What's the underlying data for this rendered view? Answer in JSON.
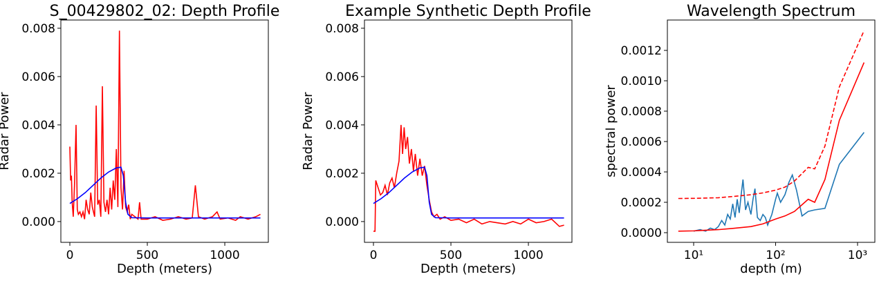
{
  "chart_data": [
    {
      "type": "line",
      "title": "S_00429802_02: Depth Profile",
      "xlabel": "Depth (meters)",
      "ylabel": "Radar Power",
      "xlim": [
        -58,
        1281
      ],
      "ylim": [
        -0.00086,
        0.00834
      ],
      "xticks": [
        0,
        500,
        1000
      ],
      "yticks": [
        {
          "value": 0,
          "label": "0.000"
        },
        {
          "value": 0.002,
          "label": "0.002"
        },
        {
          "value": 0.004,
          "label": "0.004"
        },
        {
          "value": 0.006,
          "label": "0.006"
        },
        {
          "value": 0.008,
          "label": "0.008"
        }
      ],
      "series": [
        {
          "color": "#ff0000",
          "x": [
            0,
            5,
            10,
            15,
            22,
            30,
            40,
            48,
            55,
            65,
            75,
            85,
            95,
            105,
            115,
            125,
            135,
            145,
            160,
            170,
            180,
            190,
            200,
            210,
            220,
            230,
            240,
            250,
            260,
            270,
            280,
            290,
            300,
            310,
            320,
            330,
            340,
            350,
            360,
            370,
            380,
            390,
            400,
            420,
            440,
            450,
            460,
            500,
            550,
            600,
            650,
            700,
            750,
            790,
            810,
            830,
            870,
            920,
            950,
            970,
            1020,
            1070,
            1100,
            1150,
            1200,
            1230
          ],
          "values": [
            0.0031,
            0.0017,
            0.0019,
            0.0008,
            0.0002,
            0.0015,
            0.004,
            0.0005,
            0.0003,
            0.0004,
            0.0002,
            0.0004,
            0.0001,
            0.0009,
            0.0005,
            0.0003,
            0.0012,
            0.0006,
            0.0002,
            0.0048,
            0.0007,
            0.0009,
            0.0002,
            0.0056,
            0.0008,
            0.0004,
            0.0009,
            0.0003,
            0.0014,
            0.0005,
            0.0017,
            0.0009,
            0.003,
            0.0006,
            0.0079,
            0.0014,
            0.0005,
            0.0021,
            0.0006,
            0.0004,
            0.0007,
            0.0001,
            0.0003,
            0.0002,
            0.0001,
            0.0008,
            0.0001,
            0.0001,
            0.0002,
            5e-05,
            0.0001,
            0.0002,
            0.0001,
            0.00015,
            0.0015,
            0.0002,
            0.0001,
            0.0002,
            0.0004,
            0.0001,
            0.00015,
            5e-05,
            0.0002,
            0.0001,
            0.0002,
            0.0003
          ]
        },
        {
          "color": "#0000ff",
          "x": [
            0,
            50,
            100,
            150,
            200,
            250,
            300,
            330,
            345,
            360,
            375,
            400,
            500,
            1230
          ],
          "values": [
            0.00075,
            0.00095,
            0.0012,
            0.0015,
            0.0018,
            0.00205,
            0.00222,
            0.00225,
            0.0019,
            0.0008,
            0.0003,
            0.00016,
            0.00015,
            0.00015
          ]
        }
      ]
    },
    {
      "type": "line",
      "title": "Example Synthetic Depth Profile",
      "xlabel": "Depth (meters)",
      "ylabel": "Radar Power",
      "xlim": [
        -58,
        1281
      ],
      "ylim": [
        -0.00086,
        0.00834
      ],
      "xticks": [
        0,
        500,
        1000
      ],
      "yticks": [
        {
          "value": 0,
          "label": "0.000"
        },
        {
          "value": 0.002,
          "label": "0.002"
        },
        {
          "value": 0.004,
          "label": "0.004"
        },
        {
          "value": 0.006,
          "label": "0.006"
        },
        {
          "value": 0.008,
          "label": "0.008"
        }
      ],
      "series": [
        {
          "color": "#ff0000",
          "x": [
            0,
            10,
            15,
            30,
            45,
            60,
            75,
            90,
            105,
            120,
            135,
            150,
            165,
            178,
            188,
            198,
            208,
            220,
            232,
            245,
            258,
            270,
            285,
            300,
            315,
            330,
            345,
            360,
            375,
            390,
            410,
            430,
            460,
            500,
            550,
            600,
            650,
            700,
            750,
            800,
            850,
            900,
            950,
            1000,
            1050,
            1100,
            1150,
            1200,
            1230
          ],
          "values": [
            -0.0004,
            -0.0004,
            0.0017,
            0.0014,
            0.0011,
            0.0012,
            0.0015,
            0.0011,
            0.0016,
            0.0018,
            0.0014,
            0.002,
            0.0025,
            0.004,
            0.0028,
            0.0039,
            0.003,
            0.0035,
            0.0024,
            0.003,
            0.0021,
            0.0028,
            0.0019,
            0.0026,
            0.0019,
            0.0023,
            0.0015,
            0.0009,
            0.0004,
            0.0002,
            0.0003,
            0.0001,
            0.0002,
            5e-05,
            0.0001,
            -5e-05,
            0.0001,
            -0.0001,
            0,
            -5e-05,
            -0.0001,
            0,
            -0.0001,
            0.0001,
            -5e-05,
            0,
            0.0001,
            -0.0002,
            -0.00015
          ]
        },
        {
          "color": "#0000ff",
          "x": [
            0,
            50,
            100,
            150,
            200,
            250,
            300,
            330,
            345,
            360,
            375,
            400,
            500,
            1230
          ],
          "values": [
            0.00075,
            0.00095,
            0.0012,
            0.0015,
            0.0018,
            0.00205,
            0.00222,
            0.00225,
            0.0019,
            0.0008,
            0.0003,
            0.00016,
            0.00015,
            0.00015
          ]
        }
      ]
    },
    {
      "type": "line",
      "title": "Wavelength Spectrum",
      "xlabel": "depth (m)",
      "ylabel": "spectral power",
      "xscale": "log",
      "xlim": [
        4.78,
        1626
      ],
      "ylim": [
        -6.36e-05,
        0.0014
      ],
      "xticks": [
        {
          "value": 10,
          "label": "10¹"
        },
        {
          "value": 100,
          "label": "10²"
        },
        {
          "value": 1000,
          "label": "10³"
        }
      ],
      "yticks": [
        {
          "value": 0,
          "label": "0.0000"
        },
        {
          "value": 0.0002,
          "label": "0.0002"
        },
        {
          "value": 0.0004,
          "label": "0.0004"
        },
        {
          "value": 0.0006,
          "label": "0.0006"
        },
        {
          "value": 0.0008,
          "label": "0.0008"
        },
        {
          "value": 0.001,
          "label": "0.0010"
        },
        {
          "value": 0.0012,
          "label": "0.0012"
        }
      ],
      "series": [
        {
          "color": "#1f77b4",
          "x": [
            10,
            12,
            14,
            16,
            18,
            20,
            22,
            24,
            26,
            28,
            30,
            32,
            34,
            36,
            38,
            40,
            43,
            46,
            50,
            53,
            56,
            60,
            65,
            70,
            75,
            80,
            90,
            100,
            105,
            115,
            130,
            145,
            160,
            180,
            210,
            250,
            300,
            400,
            600,
            1200
          ],
          "values": [
            1e-05,
            2e-05,
            1e-05,
            3e-05,
            2e-05,
            4e-05,
            8e-05,
            5e-05,
            0.00012,
            9e-05,
            0.00019,
            0.0001,
            0.00022,
            0.00013,
            0.00025,
            0.00035,
            0.00015,
            0.0002,
            0.00012,
            0.00022,
            0.00029,
            0.0001,
            8e-05,
            0.00012,
            0.0001,
            5e-05,
            0.00012,
            0.00022,
            0.00026,
            0.0002,
            0.00025,
            0.00033,
            0.00038,
            0.00028,
            0.00011,
            0.00014,
            0.00015,
            0.00016,
            0.00045,
            0.00066
          ]
        },
        {
          "color": "#ff0000",
          "x": [
            6.5,
            10,
            20,
            30,
            50,
            70,
            100,
            130,
            170,
            250,
            300,
            400,
            600,
            1200
          ],
          "values": [
            1e-05,
            1.2e-05,
            2e-05,
            2.8e-05,
            4e-05,
            5.8e-05,
            9e-05,
            0.00011,
            0.00014,
            0.00022,
            0.0002,
            0.00035,
            0.00074,
            0.00112
          ]
        },
        {
          "color": "#ff0000",
          "linestyle": "dashed",
          "x": [
            6.5,
            10,
            20,
            30,
            50,
            70,
            100,
            130,
            170,
            250,
            300,
            400,
            600,
            1200
          ],
          "values": [
            0.000225,
            0.000226,
            0.00023,
            0.000238,
            0.00025,
            0.000262,
            0.00028,
            0.0003,
            0.00034,
            0.00043,
            0.00042,
            0.00057,
            0.00096,
            0.00133
          ]
        }
      ]
    }
  ]
}
